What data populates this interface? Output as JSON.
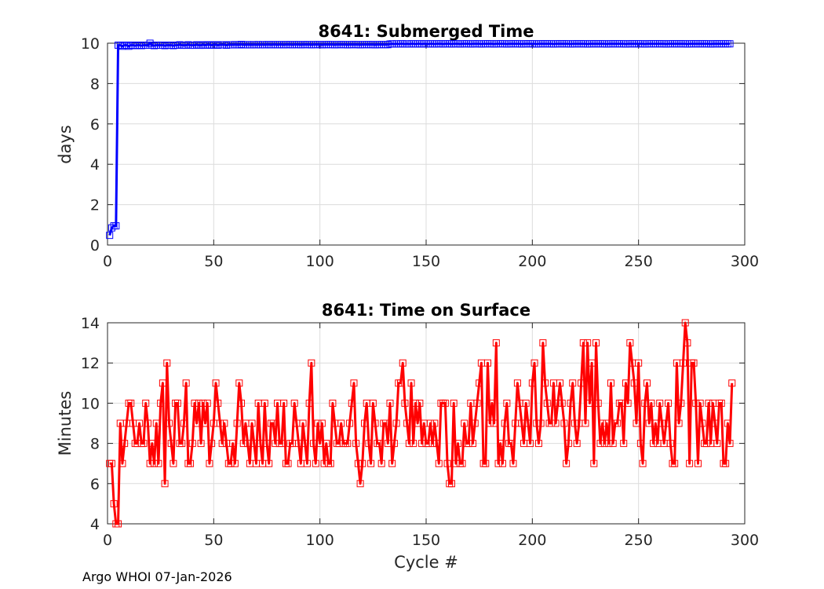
{
  "footer": "Argo WHOI 07-Jan-2026",
  "chart_data": [
    {
      "type": "line",
      "title": "8641: Submerged Time",
      "xlabel": "",
      "ylabel": "days",
      "xlim": [
        0,
        300
      ],
      "ylim": [
        0,
        10
      ],
      "xticks": [
        0,
        50,
        100,
        150,
        200,
        250,
        300
      ],
      "yticks": [
        0,
        2,
        4,
        6,
        8,
        10
      ],
      "grid": true,
      "marker": "square",
      "color": "#0000ff",
      "x_start": 1,
      "values": [
        0.48,
        0.85,
        0.95,
        0.95,
        9.9,
        9.9,
        9.85,
        9.9,
        9.9,
        9.85,
        9.9,
        9.9,
        9.88,
        9.9,
        9.9,
        9.88,
        9.9,
        9.9,
        9.9,
        10.0,
        9.9,
        9.88,
        9.9,
        9.9,
        9.9,
        9.9,
        9.88,
        9.9,
        9.9,
        9.9,
        9.88,
        9.9,
        9.9,
        9.92,
        9.9,
        9.9,
        9.9,
        9.92,
        9.9,
        9.9,
        9.9,
        9.92,
        9.9,
        9.9,
        9.92,
        9.9,
        9.92,
        9.92,
        9.9,
        9.92,
        9.92,
        9.9,
        9.92,
        9.92,
        9.92,
        9.9,
        9.92,
        9.92,
        9.92,
        9.93,
        9.92,
        9.92,
        9.94,
        9.92,
        9.92,
        9.93,
        9.92,
        9.92,
        9.93,
        9.92,
        9.93,
        9.92,
        9.93,
        9.92,
        9.93,
        9.93,
        9.92,
        9.93,
        9.93,
        9.92,
        9.93,
        9.93,
        9.92,
        9.93,
        9.93,
        9.93,
        9.92,
        9.93,
        9.93,
        9.93,
        9.92,
        9.93,
        9.93,
        9.93,
        9.93,
        9.92,
        9.93,
        9.93,
        9.93,
        9.93,
        9.92,
        9.93,
        9.93,
        9.93,
        9.93,
        9.93,
        9.92,
        9.93,
        9.93,
        9.93,
        9.93,
        9.93,
        9.92,
        9.93,
        9.93,
        9.93,
        9.93,
        9.93,
        9.92,
        9.93,
        9.93,
        9.93,
        9.93,
        9.93,
        9.93,
        9.92,
        9.93,
        9.93,
        9.93,
        9.93,
        9.93,
        9.93,
        9.96,
        9.97,
        9.96,
        9.97,
        9.96,
        9.97,
        9.97,
        9.96,
        9.97,
        9.96,
        9.97,
        9.97,
        9.96,
        9.97,
        9.97,
        9.96,
        9.97,
        9.97,
        9.96,
        9.97,
        9.97,
        9.96,
        9.97,
        9.97,
        9.97,
        9.96,
        9.97,
        9.97,
        9.97,
        9.96,
        9.97,
        9.97,
        9.97,
        9.96,
        9.97,
        9.97,
        9.97,
        9.97,
        9.96,
        9.97,
        9.97,
        9.97,
        9.97,
        9.96,
        9.97,
        9.97,
        9.97,
        9.97,
        9.97,
        9.96,
        9.97,
        9.97,
        9.97,
        9.97,
        9.97,
        9.96,
        9.97,
        9.97,
        9.97,
        9.97,
        9.97,
        9.97,
        9.96,
        9.97,
        9.97,
        9.97,
        9.97,
        9.97,
        9.97,
        9.96,
        9.97,
        9.97,
        9.97,
        9.97,
        9.97,
        9.97,
        9.97,
        9.96,
        9.97,
        9.97,
        9.97,
        9.97,
        9.97,
        9.97,
        9.97,
        9.96,
        9.97,
        9.97,
        9.97,
        9.97,
        9.97,
        9.97,
        9.97,
        9.96,
        9.97,
        9.97,
        9.97,
        9.97,
        9.97,
        9.97,
        9.97,
        9.97,
        9.96,
        9.97,
        9.97,
        9.97,
        9.97,
        9.97,
        9.97,
        9.97,
        9.97,
        9.96,
        9.97,
        9.97,
        9.97,
        9.97,
        9.97,
        9.97,
        9.97,
        9.97,
        9.96,
        9.97,
        9.97,
        9.97,
        9.97,
        9.97,
        9.97,
        9.97,
        9.97,
        9.97,
        9.96,
        9.97,
        9.97,
        9.97,
        9.97,
        9.97,
        9.97,
        9.97,
        9.97,
        9.97,
        9.96,
        9.97,
        9.97,
        9.97,
        9.97,
        9.97,
        9.97,
        9.97,
        9.97,
        9.97,
        9.97,
        9.96,
        9.97,
        9.97,
        9.97,
        9.97,
        9.97,
        9.97,
        9.97,
        9.97,
        9.97
      ]
    },
    {
      "type": "line",
      "title": "8641: Time on Surface",
      "xlabel": "Cycle #",
      "ylabel": "Minutes",
      "xlim": [
        0,
        300
      ],
      "ylim": [
        4,
        14
      ],
      "xticks": [
        0,
        50,
        100,
        150,
        200,
        250,
        300
      ],
      "yticks": [
        4,
        6,
        8,
        10,
        12,
        14
      ],
      "grid": true,
      "marker": "square",
      "color": "#ff0000",
      "x_start": 1,
      "values": [
        7,
        7,
        5,
        4,
        4,
        9,
        7,
        8,
        9,
        10,
        10,
        9,
        8,
        8,
        9,
        8,
        8,
        10,
        9,
        7,
        8,
        7,
        9,
        7,
        10,
        11,
        6,
        12,
        9,
        8,
        7,
        10,
        10,
        8,
        8,
        9,
        11,
        7,
        7,
        8,
        10,
        9,
        10,
        8,
        10,
        9,
        10,
        7,
        8,
        9,
        11,
        10,
        9,
        8,
        9,
        8,
        7,
        7,
        8,
        7,
        9,
        11,
        10,
        8,
        9,
        8,
        7,
        9,
        8,
        7,
        10,
        8,
        7,
        10,
        8,
        7,
        9,
        9,
        8,
        10,
        8,
        8,
        10,
        7,
        7,
        8,
        8,
        10,
        9,
        8,
        7,
        9,
        8,
        7,
        10,
        12,
        8,
        7,
        9,
        8,
        9,
        7,
        8,
        7,
        7,
        10,
        9,
        8,
        8,
        9,
        8,
        8,
        8,
        9,
        10,
        11,
        8,
        7,
        6,
        7,
        9,
        10,
        8,
        7,
        10,
        9,
        8,
        8,
        7,
        9,
        9,
        8,
        10,
        7,
        8,
        9,
        11,
        11,
        12,
        10,
        9,
        8,
        11,
        8,
        10,
        9,
        10,
        8,
        9,
        8,
        8,
        9,
        8,
        9,
        8,
        7,
        10,
        10,
        10,
        7,
        6,
        6,
        10,
        7,
        8,
        7,
        7,
        9,
        8,
        8,
        10,
        8,
        9,
        10,
        11,
        12,
        7,
        7,
        12,
        9,
        10,
        9,
        13,
        7,
        8,
        7,
        9,
        10,
        8,
        8,
        7,
        9,
        11,
        10,
        9,
        8,
        10,
        9,
        8,
        11,
        12,
        9,
        8,
        9,
        13,
        11,
        10,
        9,
        9,
        11,
        9,
        10,
        11,
        10,
        9,
        7,
        8,
        10,
        11,
        9,
        8,
        9,
        11,
        13,
        9,
        13,
        10,
        12,
        7,
        13,
        10,
        8,
        9,
        8,
        9,
        8,
        11,
        8,
        9,
        9,
        10,
        10,
        8,
        11,
        10,
        13,
        12,
        11,
        9,
        12,
        8,
        7,
        10,
        11,
        9,
        10,
        8,
        9,
        8,
        10,
        9,
        8,
        9,
        10,
        8,
        7,
        7,
        12,
        9,
        10,
        12,
        14,
        13,
        7,
        12,
        12,
        10,
        7,
        10,
        9,
        8,
        8,
        10,
        8,
        10,
        9,
        8,
        10,
        10,
        7,
        7,
        9,
        8,
        11
      ]
    }
  ]
}
